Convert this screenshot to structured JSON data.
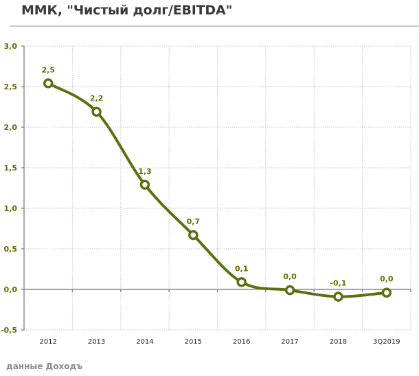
{
  "header": {
    "title": "ММК, \"Чистый долг/EBITDA\""
  },
  "footer": {
    "source": "данные Доходъ"
  },
  "colors": {
    "line": "#5a7112",
    "labels": "#6a6a00",
    "axis": "#8c8c8c",
    "grid": "#c8c8c8"
  },
  "chart_data": {
    "type": "line",
    "title": "ММК, \"Чистый долг/EBITDA\"",
    "xlabel": "",
    "ylabel": "",
    "categories": [
      "2012",
      "2013",
      "2014",
      "2015",
      "2016",
      "2017",
      "2018",
      "3Q 2019"
    ],
    "series": [
      {
        "name": "Чистый долг/EBITDA",
        "values": [
          2.54,
          2.19,
          1.29,
          0.67,
          0.09,
          -0.01,
          -0.09,
          -0.04
        ],
        "labels": [
          "2,5",
          "2,2",
          "1,3",
          "0,7",
          "0,1",
          "0,0",
          "-0,1",
          "0,0"
        ]
      }
    ],
    "ylim": [
      -0.5,
      3.0
    ],
    "yticks": [
      "3,0",
      "2,5",
      "2,0",
      "1,5",
      "1,0",
      "0,5",
      "0,0",
      "-0,5"
    ],
    "grid": true,
    "smooth": true,
    "markers": "hollow-circle",
    "legend": "none"
  }
}
